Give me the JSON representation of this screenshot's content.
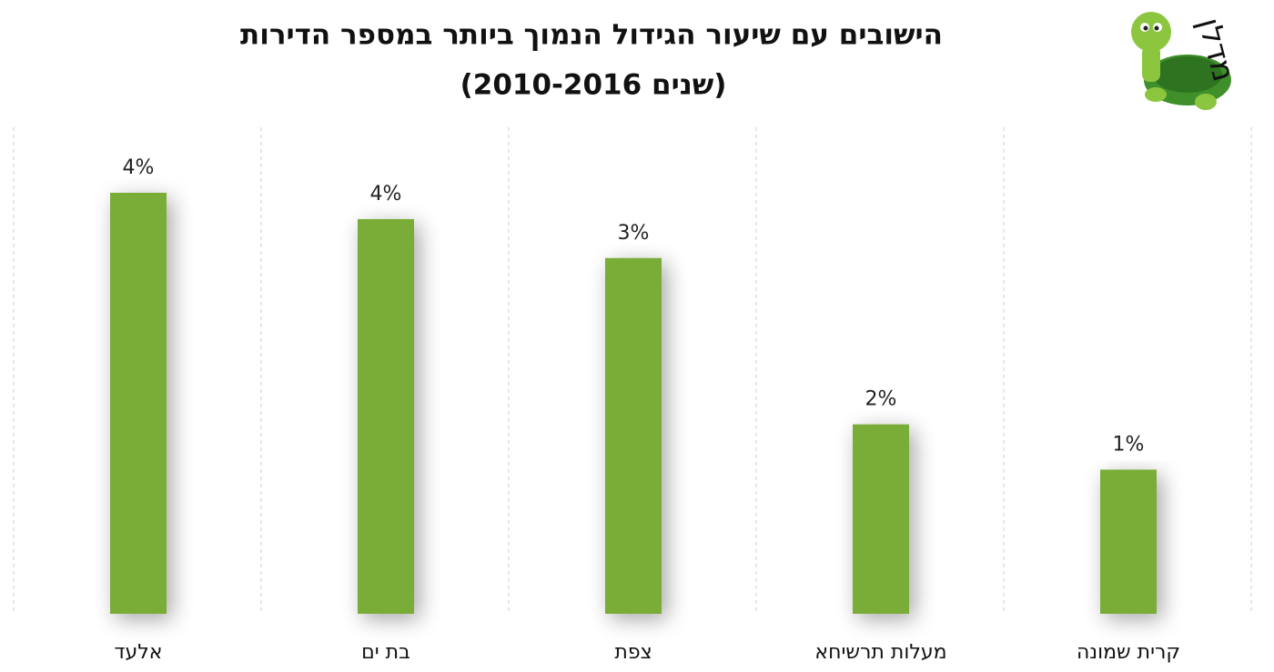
{
  "chart_data": {
    "type": "bar",
    "title": "הישובים עם שיעור הגידול הנמוך ביותר במספר הדירות",
    "subtitle": "(שנים 2010-2016)",
    "logo": "מדלן",
    "categories": [
      "אלעד",
      "בת ים",
      "צפת",
      "מעלות תרשיחא",
      "קרית שמונה"
    ],
    "values": [
      4.0,
      3.75,
      3.38,
      1.8,
      1.37
    ],
    "value_labels": [
      "4%",
      "4%",
      "3%",
      "2%",
      "1%"
    ],
    "color": "#7aad39"
  }
}
